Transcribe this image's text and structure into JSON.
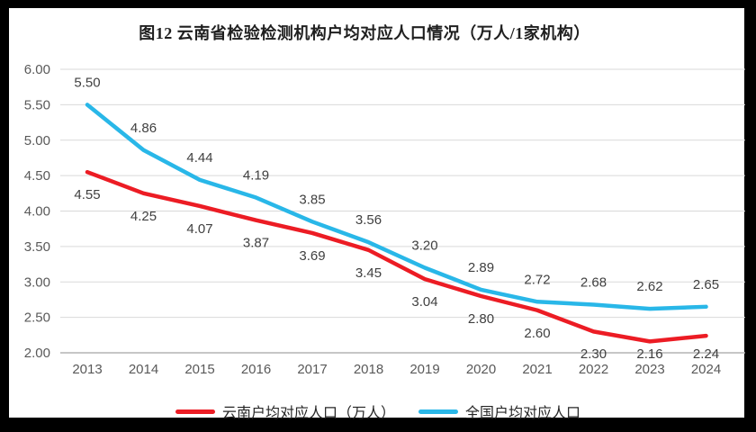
{
  "page": {
    "title": "图12 云南省检验检测机构户均对应人口情况（万人/1家机构）"
  },
  "chart_data": {
    "type": "line",
    "title": "图12 云南省检验检测机构户均对应人口情况（万人/1家机构）",
    "xlabel": "",
    "ylabel": "",
    "categories": [
      "2013",
      "2014",
      "2015",
      "2016",
      "2017",
      "2018",
      "2019",
      "2020",
      "2021",
      "2022",
      "2023",
      "2024"
    ],
    "series": [
      {
        "name": "云南户均对应人口（万人）",
        "color": "#ec1c24",
        "label_position": "below",
        "values": [
          4.55,
          4.25,
          4.07,
          3.87,
          3.69,
          3.45,
          3.04,
          2.8,
          2.6,
          2.3,
          2.16,
          2.24
        ]
      },
      {
        "name": "全国户均对应人口",
        "color": "#29b7e8",
        "label_position": "above",
        "values": [
          5.5,
          4.86,
          4.44,
          4.19,
          3.85,
          3.56,
          3.2,
          2.89,
          2.72,
          2.68,
          2.62,
          2.65
        ]
      }
    ],
    "ylim": [
      2.0,
      6.0
    ],
    "ytick_step": 0.5,
    "ytick_labels": [
      "2.00",
      "2.50",
      "3.00",
      "3.50",
      "4.00",
      "4.50",
      "5.00",
      "5.50",
      "6.00"
    ],
    "grid": true,
    "data_labels": true,
    "value_format": "0.00",
    "legend_position": "bottom",
    "colors": {
      "gridline": "#d9d9d9",
      "axis_line": "#b3b3b3",
      "tick_text": "#595959",
      "data_label_text": "#404040",
      "title_text": "#1f1f1f",
      "background": "#ffffff",
      "outer_border": "#000000"
    }
  }
}
